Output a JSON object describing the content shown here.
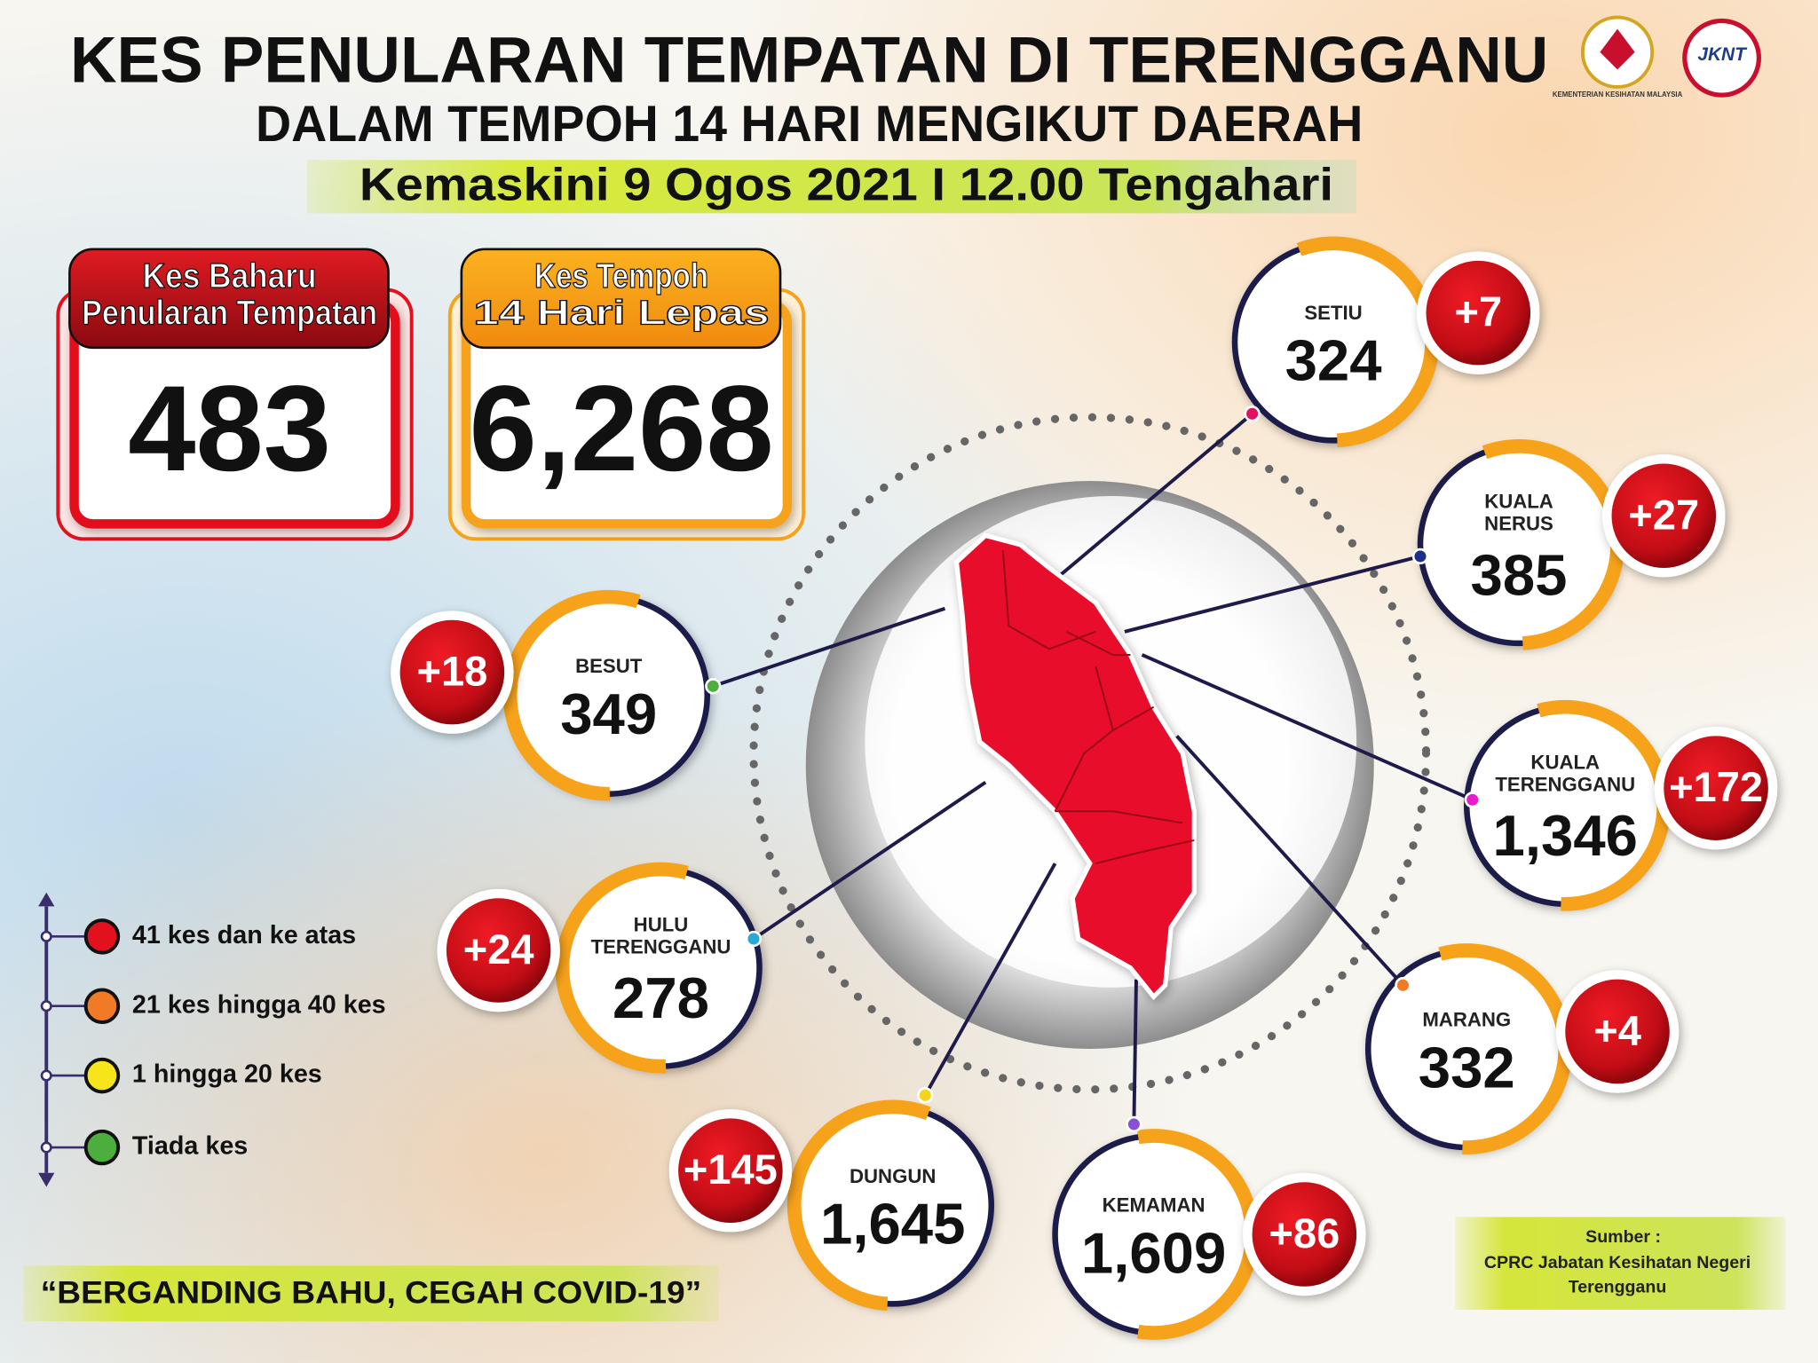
{
  "logos": [
    "KEMENTERIAN KESIHATAN MALAYSIA",
    "JKNT"
  ],
  "header": {
    "title": "KES PENULARAN TEMPATAN DI TERENGGANU",
    "subtitle": "DALAM TEMPOH 14 HARI MENGIKUT DAERAH",
    "updated": "Kemaskini 9 Ogos 2021 I 12.00 Tengahari"
  },
  "summary": [
    {
      "label_lines": [
        "Kes Baharu",
        "Penularan Tempatan"
      ],
      "value": "483"
    },
    {
      "label_lines": [
        "Kes Tempoh",
        "14 Hari Lepas"
      ],
      "value": "6,268"
    }
  ],
  "districts": [
    {
      "name_lines": [
        "SETIU"
      ],
      "total": "324",
      "new": "+7"
    },
    {
      "name_lines": [
        "KUALA",
        "NERUS"
      ],
      "total": "385",
      "new": "+27"
    },
    {
      "name_lines": [
        "KUALA",
        "TERENGGANU"
      ],
      "total": "1,346",
      "new": "+172"
    },
    {
      "name_lines": [
        "MARANG"
      ],
      "total": "332",
      "new": "+4"
    },
    {
      "name_lines": [
        "KEMAMAN"
      ],
      "total": "1,609",
      "new": "+86"
    },
    {
      "name_lines": [
        "DUNGUN"
      ],
      "total": "1,645",
      "new": "+145"
    },
    {
      "name_lines": [
        "HULU",
        "TERENGGANU"
      ],
      "total": "278",
      "new": "+24"
    },
    {
      "name_lines": [
        "BESUT"
      ],
      "total": "349",
      "new": "+18"
    }
  ],
  "legend": [
    {
      "label": "41 kes dan ke atas",
      "color": "#e3101e"
    },
    {
      "label": "21 kes hingga 40 kes",
      "color": "#f07b24"
    },
    {
      "label": "1 hingga 20 kes",
      "color": "#f5e51a"
    },
    {
      "label": "Tiada kes",
      "color": "#4cae3c"
    }
  ],
  "slogan": "“BERGANDING BAHU, CEGAH COVID-19”",
  "source": {
    "label": "Sumber :",
    "lines": [
      "CPRC Jabatan Kesihatan Negeri",
      "Terengganu"
    ]
  }
}
